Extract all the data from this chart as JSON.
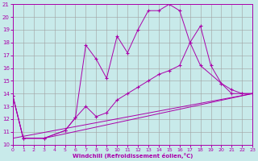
{
  "xlabel": "Windchill (Refroidissement éolien,°C)",
  "background_color": "#c8eaea",
  "grid_color": "#a0a0a0",
  "line_color": "#aa00aa",
  "xmin": 0,
  "xmax": 23,
  "ymin": 10,
  "ymax": 21,
  "xticks": [
    0,
    1,
    2,
    3,
    4,
    5,
    6,
    7,
    8,
    9,
    10,
    11,
    12,
    13,
    14,
    15,
    16,
    17,
    18,
    19,
    20,
    21,
    22,
    23
  ],
  "yticks": [
    10,
    11,
    12,
    13,
    14,
    15,
    16,
    17,
    18,
    19,
    20,
    21
  ],
  "s0x": [
    0,
    1,
    3,
    5,
    6,
    7,
    8,
    9,
    10,
    11,
    12,
    13,
    14,
    15,
    16,
    17,
    18,
    19,
    20,
    21,
    22,
    23
  ],
  "s0y": [
    13.8,
    10.5,
    10.5,
    11.1,
    12.1,
    17.8,
    16.7,
    15.2,
    18.5,
    17.2,
    19.0,
    20.5,
    20.5,
    21.0,
    20.5,
    18.0,
    19.3,
    16.2,
    14.8,
    14.0,
    14.0,
    14.0
  ],
  "s1x": [
    0,
    1,
    3,
    5,
    6,
    7,
    8,
    9,
    10,
    11,
    12,
    13,
    14,
    15,
    16,
    17,
    18,
    20,
    21,
    22,
    23
  ],
  "s1y": [
    13.8,
    10.5,
    10.5,
    11.1,
    12.1,
    13.0,
    12.2,
    12.5,
    13.5,
    14.0,
    14.5,
    15.0,
    15.5,
    15.8,
    16.2,
    18.0,
    16.2,
    14.8,
    14.3,
    14.0,
    14.0
  ],
  "s2x": [
    0,
    1,
    3,
    23
  ],
  "s2y": [
    13.8,
    10.5,
    10.5,
    14.0
  ],
  "s3x": [
    0,
    23
  ],
  "s3y": [
    10.5,
    14.0
  ]
}
